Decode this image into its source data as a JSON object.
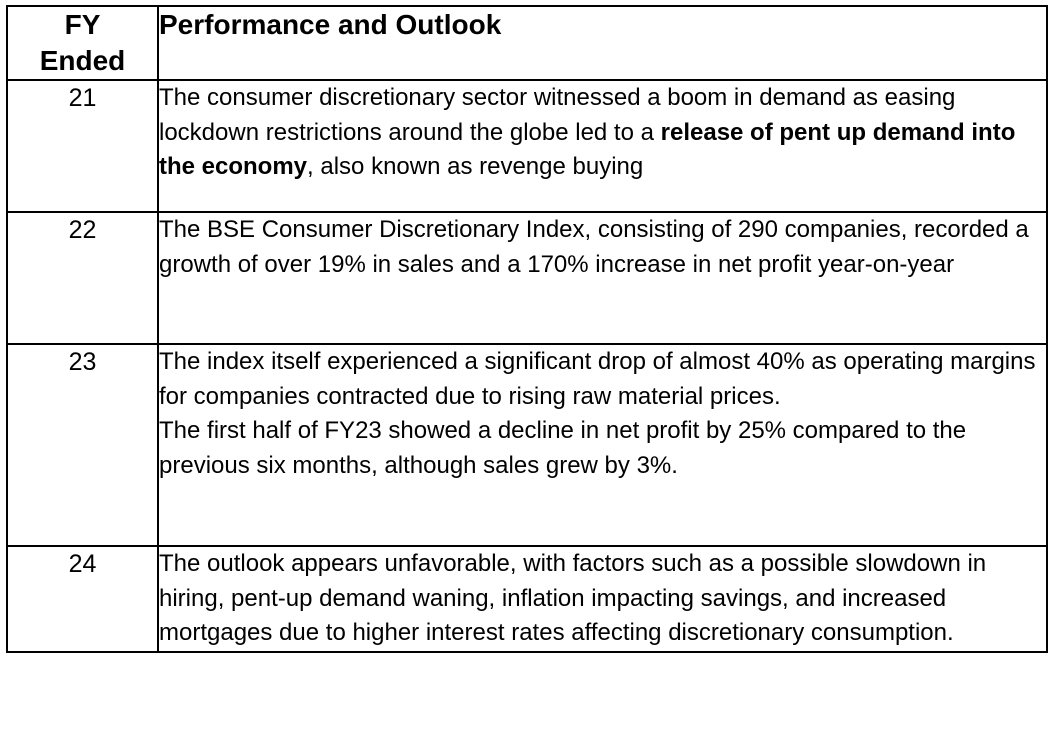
{
  "table": {
    "header": {
      "fy_line1": "FY",
      "fy_line2": "Ended",
      "description": "Performance and Outlook"
    },
    "rows": [
      {
        "year": "21",
        "text_pre": "The consumer discretionary sector witnessed a boom in demand as easing lockdown restrictions around the globe led to a ",
        "text_bold": "release of pent up demand into the economy",
        "text_post": ", also known as revenge buying"
      },
      {
        "year": "22",
        "text": "The BSE Consumer Discretionary Index, consisting of 290 companies, recorded a growth of over 19% in sales and a 170% increase in net profit year-on-year"
      },
      {
        "year": "23",
        "text_para1": "The index itself experienced a significant drop of almost 40% as operating margins for companies contracted due to rising raw material prices.",
        "text_para2": "The first half of FY23 showed a decline in net profit by 25% compared to the previous six months, although sales grew by 3%."
      },
      {
        "year": "24",
        "text": "The outlook appears unfavorable, with factors such as a possible slowdown in hiring, pent-up demand waning, inflation impacting savings, and increased mortgages due to higher interest rates affecting discretionary consumption."
      }
    ]
  }
}
